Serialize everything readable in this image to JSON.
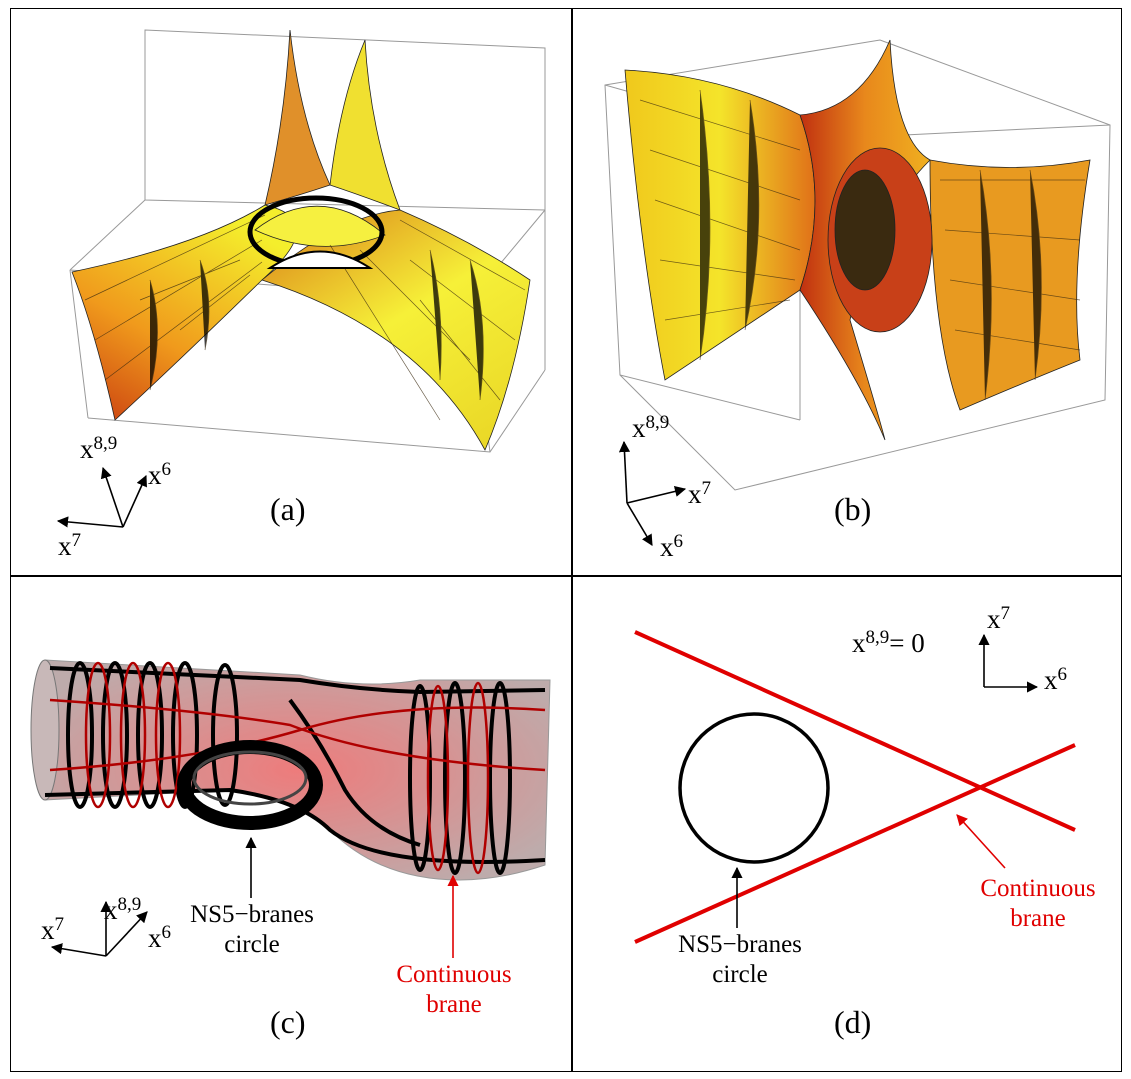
{
  "panels": [
    {
      "label": "(a)",
      "axes": {
        "vertical": {
          "base": "x",
          "sup": "8,9"
        },
        "right": {
          "base": "x",
          "sup": "6"
        },
        "left": {
          "base": "x",
          "sup": "7"
        }
      }
    },
    {
      "label": "(b)",
      "axes": {
        "vertical": {
          "base": "x",
          "sup": "8,9"
        },
        "right": {
          "base": "x",
          "sup": "7"
        },
        "down": {
          "base": "x",
          "sup": "6"
        }
      }
    },
    {
      "label": "(c)",
      "axes": {
        "vertical": {
          "base": "x",
          "sup": "8,9"
        },
        "right": {
          "base": "x",
          "sup": "6"
        },
        "left": {
          "base": "x",
          "sup": "7"
        }
      },
      "annotations": {
        "circle": [
          "NS5−branes",
          "circle"
        ],
        "brane": [
          "Continuous",
          "brane"
        ]
      }
    },
    {
      "label": "(d)",
      "axes": {
        "vertical": {
          "base": "x",
          "sup": "7"
        },
        "right": {
          "base": "x",
          "sup": "6"
        }
      },
      "plane_base": "x",
      "plane_sup": "8,9",
      "plane_eq": "= 0",
      "annotations": {
        "circle": [
          "NS5−branes",
          "circle"
        ],
        "brane": [
          "Continuous",
          "brane"
        ]
      }
    }
  ],
  "colors": {
    "surface_light": "#f0f020",
    "surface_dark": "#d04010",
    "brane_red": "#e00000",
    "ink": "#000000"
  }
}
